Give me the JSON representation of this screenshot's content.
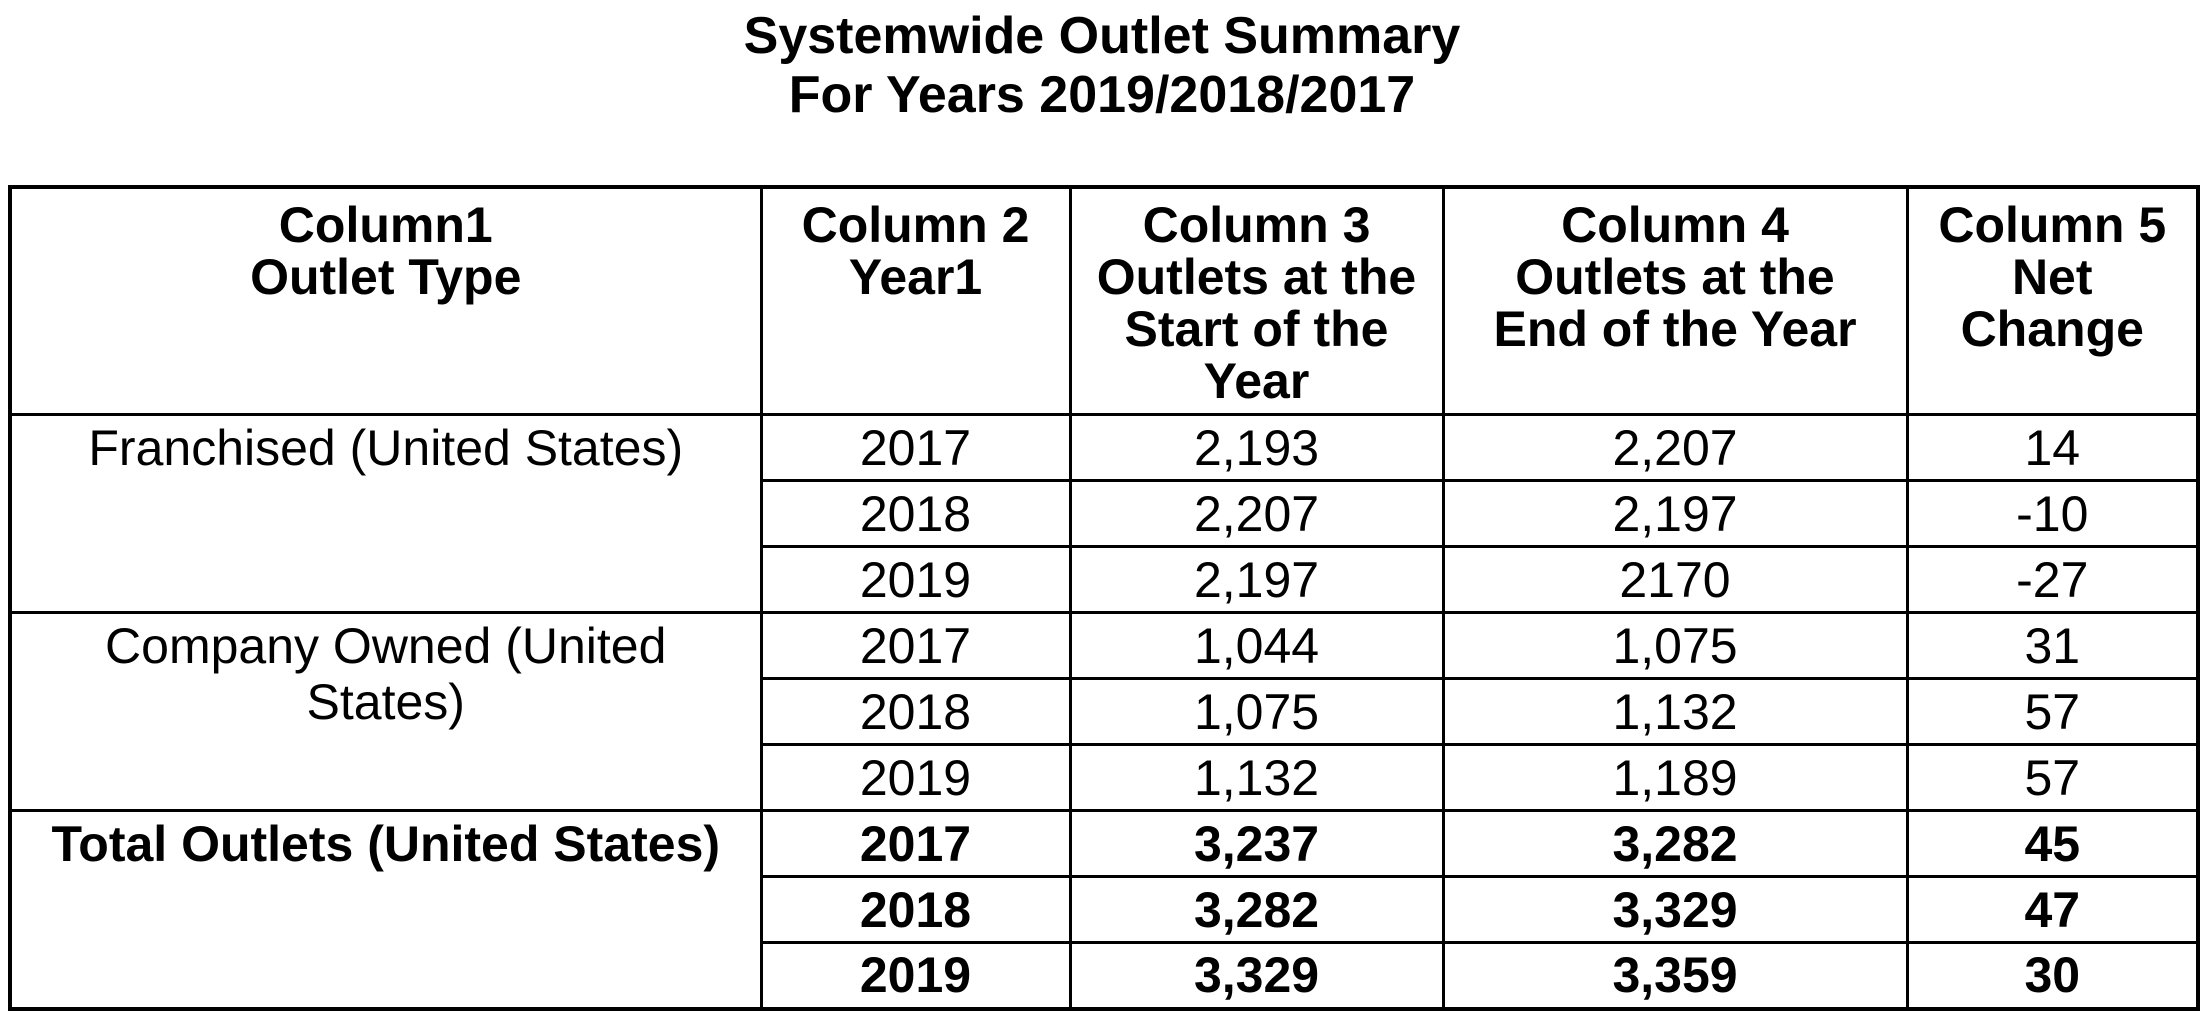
{
  "title": {
    "line1": "Systemwide Outlet Summary",
    "line2": "For Years 2019/2018/2017"
  },
  "colors": {
    "background": "#ffffff",
    "text": "#000000",
    "border": "#000000"
  },
  "table": {
    "headers": [
      {
        "lines": [
          "Column1",
          "Outlet Type"
        ]
      },
      {
        "lines": [
          "Column 2",
          "Year1"
        ]
      },
      {
        "lines": [
          "Column 3",
          "Outlets at the",
          "Start of the",
          "Year"
        ]
      },
      {
        "lines": [
          "Column 4",
          "Outlets at the",
          "End of the Year"
        ]
      },
      {
        "lines": [
          "Column 5",
          "Net",
          "Change"
        ]
      }
    ],
    "sections": [
      {
        "outlet_type": "Franchised (United States)",
        "rows": [
          {
            "year": "2017",
            "start": "2,193",
            "end": "2,207",
            "net": "14"
          },
          {
            "year": "2018",
            "start": "2,207",
            "end": "2,197",
            "net": "-10"
          },
          {
            "year": "2019",
            "start": "2,197",
            "end": "2170",
            "net": "-27"
          }
        ]
      },
      {
        "outlet_type": "Company Owned (United States)",
        "rows": [
          {
            "year": "2017",
            "start": "1,044",
            "end": "1,075",
            "net": "31"
          },
          {
            "year": "2018",
            "start": "1,075",
            "end": "1,132",
            "net": "57"
          },
          {
            "year": "2019",
            "start": "1,132",
            "end": "1,189",
            "net": "57"
          }
        ]
      },
      {
        "outlet_type": "Total Outlets (United States)",
        "rows": [
          {
            "year": "2017",
            "start": "3,237",
            "end": "3,282",
            "net": "45"
          },
          {
            "year": "2018",
            "start": "3,282",
            "end": "3,329",
            "net": "47"
          },
          {
            "year": "2019",
            "start": "3,329",
            "end": "3,359",
            "net": "30"
          }
        ]
      }
    ]
  }
}
